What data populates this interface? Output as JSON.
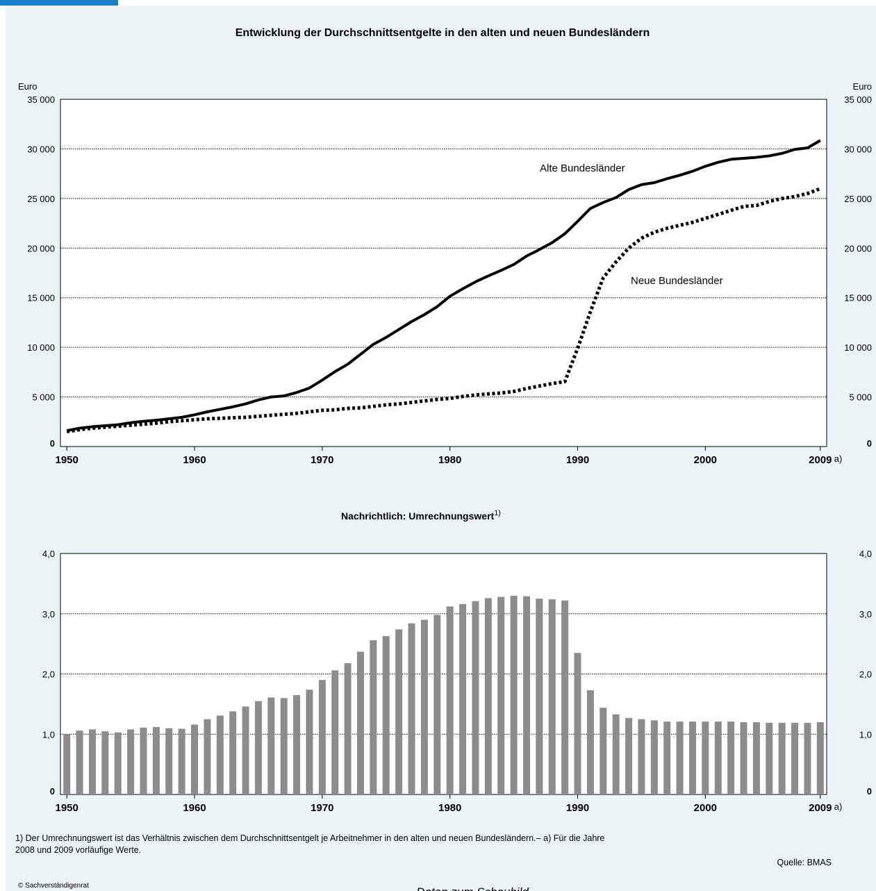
{
  "chart_data": [
    {
      "type": "line",
      "title": "Entwicklung der Durchschnittsentgelte in den alten und neuen Bundesländern",
      "ylabel": "Euro",
      "x": [
        1950,
        1951,
        1952,
        1953,
        1954,
        1955,
        1956,
        1957,
        1958,
        1959,
        1960,
        1961,
        1962,
        1963,
        1964,
        1965,
        1966,
        1967,
        1968,
        1969,
        1970,
        1971,
        1972,
        1973,
        1974,
        1975,
        1976,
        1977,
        1978,
        1979,
        1980,
        1981,
        1982,
        1983,
        1984,
        1985,
        1986,
        1987,
        1988,
        1989,
        1990,
        1991,
        1992,
        1993,
        1994,
        1995,
        1996,
        1997,
        1998,
        1999,
        2000,
        2001,
        2002,
        2003,
        2004,
        2005,
        2006,
        2007,
        2008,
        2009
      ],
      "series": [
        {
          "name": "Alte Bundesländer",
          "color": "#000000",
          "values": [
            1600,
            1850,
            2000,
            2100,
            2200,
            2400,
            2550,
            2650,
            2800,
            2950,
            3200,
            3500,
            3750,
            4000,
            4300,
            4700,
            5000,
            5100,
            5450,
            5900,
            6700,
            7550,
            8300,
            9300,
            10300,
            11000,
            11800,
            12600,
            13300,
            14100,
            15150,
            15900,
            16600,
            17200,
            17750,
            18350,
            19200,
            19850,
            20550,
            21450,
            22700,
            24000,
            24600,
            25100,
            25900,
            26400,
            26600,
            27000,
            27350,
            27750,
            28250,
            28650,
            28950,
            29050,
            29150,
            29300,
            29550,
            29950,
            30100,
            30850
          ]
        },
        {
          "name": "Neue Bundesländer",
          "color": "#000000",
          "dash": true,
          "values": [
            1500,
            1700,
            1850,
            1950,
            2050,
            2150,
            2250,
            2350,
            2500,
            2600,
            2700,
            2800,
            2850,
            2900,
            2950,
            3050,
            3150,
            3250,
            3350,
            3500,
            3650,
            3700,
            3850,
            3900,
            4050,
            4200,
            4300,
            4450,
            4600,
            4750,
            4850,
            5050,
            5200,
            5300,
            5400,
            5550,
            5850,
            6100,
            6350,
            6550,
            9900,
            13600,
            17000,
            18600,
            20000,
            21000,
            21600,
            22000,
            22300,
            22600,
            23000,
            23400,
            23800,
            24200,
            24300,
            24700,
            25000,
            25200,
            25500,
            26000
          ]
        }
      ],
      "xlim": [
        1949.5,
        2009.5
      ],
      "xticks": [
        1950,
        1960,
        1970,
        1980,
        1990,
        2000,
        2009
      ],
      "xtick_note": "a)",
      "ylim": [
        0,
        35000
      ],
      "yticks": [
        0,
        {
          "value": 5000,
          "label": "5 000"
        },
        {
          "value": 10000,
          "label": "10 000"
        },
        {
          "value": 15000,
          "label": "15 000"
        },
        {
          "value": 20000,
          "label": "20 000"
        },
        {
          "value": 25000,
          "label": "25 000"
        },
        {
          "value": 30000,
          "label": "30 000"
        },
        {
          "value": 35000,
          "label": "35 000"
        }
      ],
      "grid": true
    },
    {
      "type": "bar",
      "title": "Nachrichtlich: Umrechnungswert",
      "title_note": "1)",
      "color": "#8c8c8c",
      "x": [
        1950,
        1951,
        1952,
        1953,
        1954,
        1955,
        1956,
        1957,
        1958,
        1959,
        1960,
        1961,
        1962,
        1963,
        1964,
        1965,
        1966,
        1967,
        1968,
        1969,
        1970,
        1971,
        1972,
        1973,
        1974,
        1975,
        1976,
        1977,
        1978,
        1979,
        1980,
        1981,
        1982,
        1983,
        1984,
        1985,
        1986,
        1987,
        1988,
        1989,
        1990,
        1991,
        1992,
        1993,
        1994,
        1995,
        1996,
        1997,
        1998,
        1999,
        2000,
        2001,
        2002,
        2003,
        2004,
        2005,
        2006,
        2007,
        2008,
        2009
      ],
      "values": [
        1.0,
        1.06,
        1.08,
        1.05,
        1.03,
        1.08,
        1.11,
        1.12,
        1.1,
        1.09,
        1.16,
        1.25,
        1.31,
        1.38,
        1.46,
        1.55,
        1.61,
        1.6,
        1.65,
        1.74,
        1.9,
        2.06,
        2.18,
        2.37,
        2.56,
        2.63,
        2.74,
        2.84,
        2.9,
        2.98,
        3.12,
        3.16,
        3.21,
        3.26,
        3.28,
        3.3,
        3.29,
        3.25,
        3.24,
        3.22,
        2.35,
        1.73,
        1.44,
        1.33,
        1.27,
        1.25,
        1.23,
        1.21,
        1.21,
        1.21,
        1.21,
        1.21,
        1.21,
        1.2,
        1.2,
        1.19,
        1.19,
        1.19,
        1.19,
        1.2
      ],
      "xlim": [
        1949.5,
        2009.5
      ],
      "xticks": [
        1950,
        1960,
        1970,
        1980,
        1990,
        2000,
        2009
      ],
      "xtick_note": "a)",
      "ylim": [
        0,
        4
      ],
      "yticks": [
        0,
        {
          "value": 1,
          "label": "1,0"
        },
        {
          "value": 2,
          "label": "2,0"
        },
        {
          "value": 3,
          "label": "3,0"
        },
        {
          "value": 4,
          "label": "4,0"
        }
      ],
      "grid": true
    }
  ],
  "footnote": [
    "1) Der Umrechnungswert ist das Verhältnis zwischen dem Durchschnittsentgelt je Arbeitnehmer in den alten und neuen Bundesländern.– a) Für die Jahre",
    "2008 und 2009 vorläufige Werte."
  ],
  "source": "Quelle: BMAS",
  "copyright": "© Sachverständigenrat",
  "link": "Daten zum Schaubild"
}
